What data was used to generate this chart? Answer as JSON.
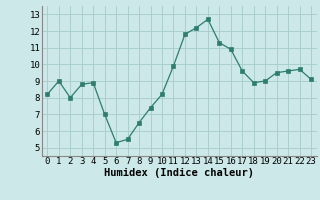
{
  "x": [
    0,
    1,
    2,
    3,
    4,
    5,
    6,
    7,
    8,
    9,
    10,
    11,
    12,
    13,
    14,
    15,
    16,
    17,
    18,
    19,
    20,
    21,
    22,
    23
  ],
  "y": [
    8.2,
    9.0,
    8.0,
    8.8,
    8.9,
    7.0,
    5.3,
    5.5,
    6.5,
    7.4,
    8.2,
    9.9,
    11.8,
    12.2,
    12.7,
    11.3,
    10.9,
    9.6,
    8.9,
    9.0,
    9.5,
    9.6,
    9.7,
    9.1
  ],
  "xlabel": "Humidex (Indice chaleur)",
  "ylim": [
    4.5,
    13.5
  ],
  "xlim": [
    -0.5,
    23.5
  ],
  "yticks": [
    5,
    6,
    7,
    8,
    9,
    10,
    11,
    12,
    13
  ],
  "xticks": [
    0,
    1,
    2,
    3,
    4,
    5,
    6,
    7,
    8,
    9,
    10,
    11,
    12,
    13,
    14,
    15,
    16,
    17,
    18,
    19,
    20,
    21,
    22,
    23
  ],
  "line_color": "#2e7d6e",
  "marker_color": "#2e7d6e",
  "bg_color": "#cce8e8",
  "grid_color": "#aacfcf",
  "xlabel_fontsize": 7.5,
  "tick_fontsize": 6.5
}
